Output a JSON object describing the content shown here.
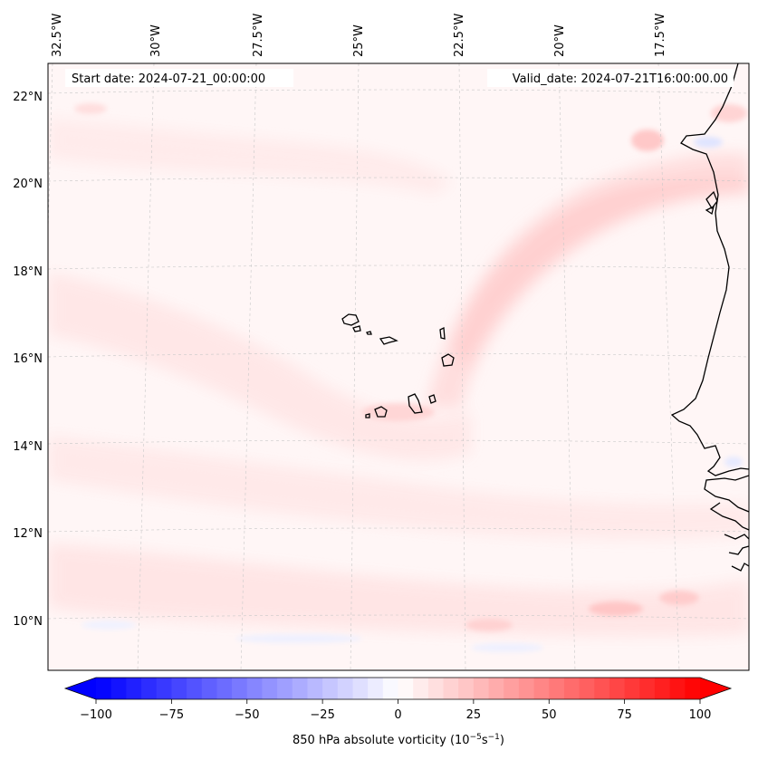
{
  "header": {
    "start_date": "Start date: 2024-07-21_00:00:00",
    "valid_date": "Valid_date: 2024-07-21T16:00:00.00"
  },
  "map": {
    "lon_labels": [
      "32.5°W",
      "30°W",
      "27.5°W",
      "25°W",
      "22.5°W",
      "20°W",
      "17.5°W"
    ],
    "lat_labels": [
      "22°N",
      "20°N",
      "18°N",
      "16°N",
      "14°N",
      "12°N",
      "10°N"
    ],
    "gridlines": true
  },
  "colorbar": {
    "ticks": [
      "−100",
      "−75",
      "−50",
      "−25",
      "0",
      "25",
      "50",
      "75",
      "100"
    ],
    "label_main": "850 hPa absolute vorticity (10",
    "label_exp1": "−5",
    "label_mid": "s",
    "label_exp2": "−1",
    "label_end": ")",
    "vmin": -100,
    "vmax": 100,
    "levels": 41,
    "colormap": "bwr",
    "color_min": "#0000ff",
    "color_mid": "#ffffff",
    "color_max": "#ff0000"
  }
}
